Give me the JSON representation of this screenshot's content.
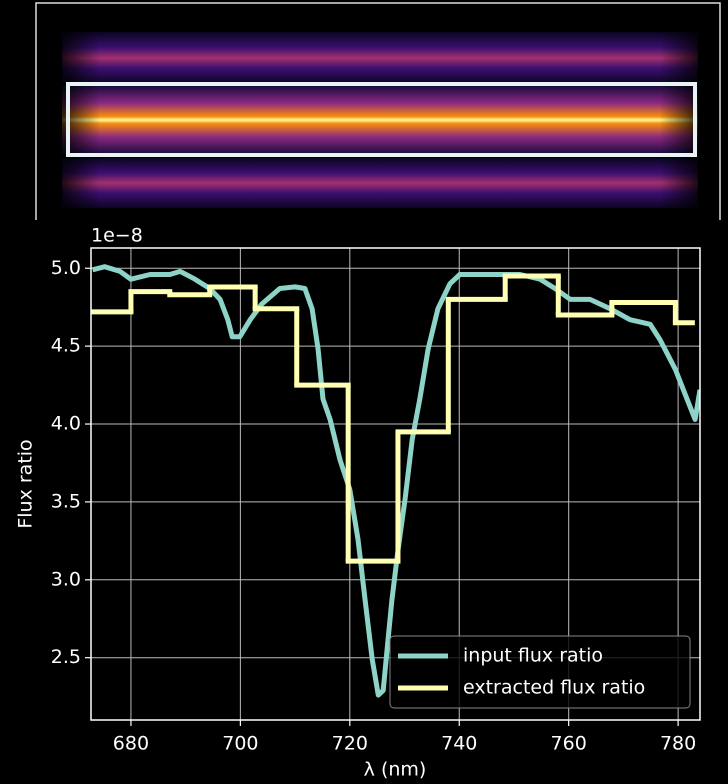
{
  "chart_data": {
    "type": "line",
    "offset_text": "1e−8",
    "x_label": "λ (nm)",
    "y_label": "Flux ratio",
    "xlim": [
      672.7,
      784
    ],
    "ylim": [
      2.1,
      5.13
    ],
    "xticks": [
      680,
      700,
      720,
      740,
      760,
      780
    ],
    "yticks": [
      2.5,
      {
        "value": 3,
        "label": "3.0"
      },
      3.5,
      {
        "value": 4,
        "label": "4.0"
      },
      4.5,
      {
        "value": 5,
        "label": "5.0"
      }
    ],
    "grid": true,
    "legend": "lower right",
    "series": [
      {
        "name": "input flux ratio",
        "color": "#8dd3c7",
        "x": [
          673.0,
          675.2,
          678.0,
          680.0,
          683.5,
          687.1,
          689.0,
          691.7,
          694.4,
          696.3,
          697.7,
          698.5,
          699.9,
          701.8,
          703.9,
          707.2,
          710.0,
          711.8,
          713.1,
          714.2,
          715.1,
          716.4,
          718.2,
          720.0,
          721.5,
          722.8,
          724.1,
          725.2,
          726.1,
          727.0,
          727.7,
          728.8,
          730.1,
          731.4,
          732.8,
          734.3,
          736.1,
          738.3,
          740.1,
          743.8,
          747.5,
          751.1,
          754.8,
          757.5,
          760.3,
          763.9,
          767.6,
          771.2,
          774.9,
          776.7,
          779.5,
          781.3,
          783.1,
          784.0
        ],
        "values": [
          4.99,
          5.01,
          4.98,
          4.93,
          4.96,
          4.96,
          4.98,
          4.93,
          4.87,
          4.8,
          4.67,
          4.56,
          4.56,
          4.67,
          4.77,
          4.87,
          4.88,
          4.87,
          4.74,
          4.48,
          4.16,
          4.03,
          3.77,
          3.58,
          3.26,
          2.87,
          2.49,
          2.26,
          2.29,
          2.62,
          2.87,
          3.19,
          3.52,
          3.9,
          4.16,
          4.48,
          4.74,
          4.9,
          4.96,
          4.96,
          4.96,
          4.96,
          4.93,
          4.87,
          4.8,
          4.8,
          4.74,
          4.67,
          4.64,
          4.54,
          4.35,
          4.19,
          4.03,
          4.22
        ]
      },
      {
        "name": "extracted flux ratio",
        "color": "#ffffb3",
        "bins": [
          672.7,
          680.0,
          687.1,
          694.4,
          702.7,
          710.3,
          719.7,
          728.8,
          738.0,
          748.4,
          758.1,
          767.9,
          779.5,
          782.6
        ],
        "values": [
          4.72,
          4.85,
          4.83,
          4.88,
          4.74,
          4.25,
          3.12,
          3.95,
          4.8,
          4.95,
          4.7,
          4.78,
          4.65
        ]
      }
    ]
  }
}
